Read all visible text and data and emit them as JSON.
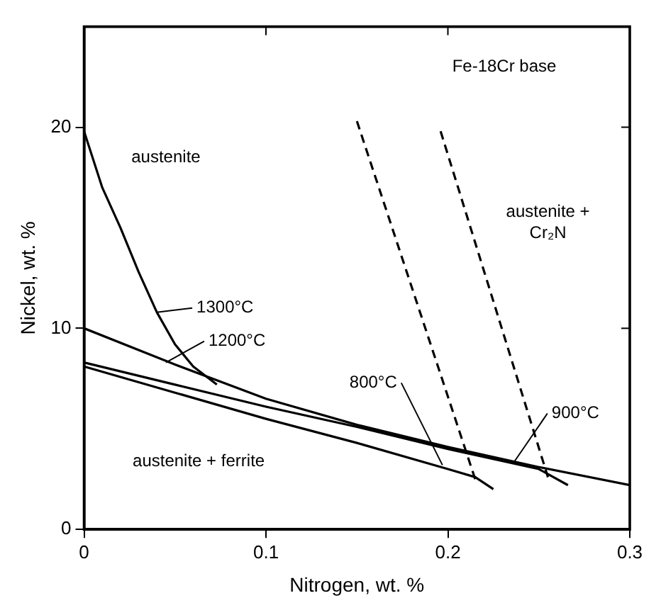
{
  "chart_data": {
    "type": "line",
    "xlabel": "Nitrogen, wt. %",
    "ylabel": "Nickel, wt. %",
    "xlim": [
      0,
      0.3
    ],
    "xticks": [
      0,
      0.1,
      0.2,
      0.3
    ],
    "ylim": [
      0,
      25
    ],
    "yticks": [
      0,
      10,
      20
    ],
    "grid": false,
    "legend": false,
    "marker": "none",
    "series": [
      {
        "color": "#000000",
        "line_style": "solid",
        "x": [
          0,
          0.01,
          0.02,
          0.03,
          0.04,
          0.05,
          0.06,
          0.073
        ],
        "values": [
          19.8,
          17,
          15,
          12.8,
          10.8,
          9.2,
          8.1,
          7.2
        ]
      },
      {
        "color": "#000000",
        "line_style": "solid",
        "x": [
          0,
          0.05,
          0.1,
          0.15,
          0.2,
          0.25,
          0.3
        ],
        "values": [
          10,
          8.2,
          6.5,
          5.2,
          4.1,
          3.1,
          2.2
        ]
      },
      {
        "color": "#000000",
        "line_style": "solid",
        "x": [
          0,
          0.05,
          0.1,
          0.15,
          0.2,
          0.25,
          0.266
        ],
        "values": [
          8.3,
          7.2,
          6.1,
          5.1,
          4,
          3,
          2.2
        ]
      },
      {
        "color": "#000000",
        "line_style": "solid",
        "x": [
          0,
          0.05,
          0.1,
          0.15,
          0.2,
          0.215,
          0.225
        ],
        "values": [
          8.1,
          6.8,
          5.5,
          4.3,
          3,
          2.6,
          2
        ]
      },
      {
        "color": "#000000",
        "line_style": "dashed",
        "x": [
          0.15,
          0.215
        ],
        "values": [
          20.3,
          2.5
        ]
      },
      {
        "color": "#000000",
        "line_style": "dashed",
        "x": [
          0.196,
          0.255
        ],
        "values": [
          19.8,
          2.6
        ]
      }
    ],
    "annotations": [
      {
        "text": "1300°C",
        "x": 0.04,
        "y": 10.8
      },
      {
        "text": "1200°C",
        "x": 0.045,
        "y": 8.3
      },
      {
        "text": "800°C",
        "x": 0.197,
        "y": 3.2
      },
      {
        "text": "900°C",
        "x": 0.236,
        "y": 3.3
      },
      "austenite",
      "Fe-18Cr base",
      "austenite + Cr₂N",
      "austenite + ferrite"
    ]
  }
}
